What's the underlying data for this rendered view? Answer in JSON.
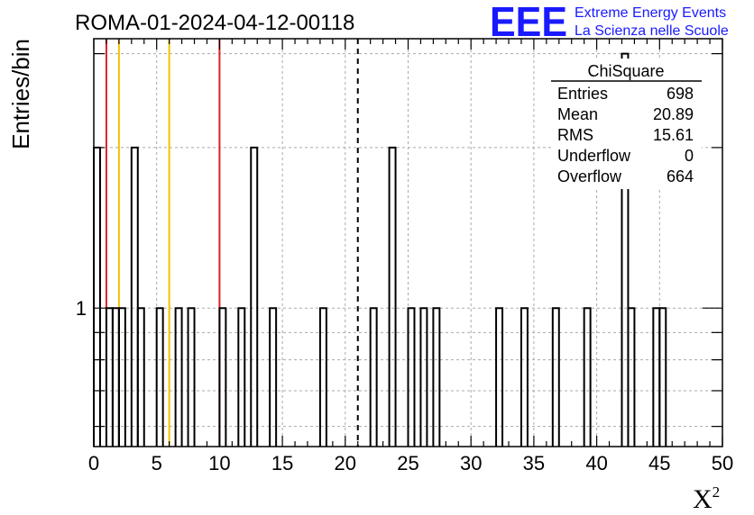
{
  "chart_data": {
    "type": "bar",
    "title": "ROMA-01-2024-04-12-00118",
    "xlabel": "X",
    "xlabel_superscript": "2",
    "ylabel": "Entries/bin",
    "xlim": [
      0,
      50
    ],
    "ylim": [
      0.55,
      3.2
    ],
    "y_scale": "log",
    "grid": true,
    "x_ticks": [
      "0",
      "5",
      "10",
      "15",
      "20",
      "25",
      "30",
      "35",
      "40",
      "45",
      "50"
    ],
    "y_ticks": [
      "1"
    ],
    "bin_width": 0.5,
    "bins": [
      {
        "x": 0.0,
        "y": 2
      },
      {
        "x": 1.0,
        "y": 1
      },
      {
        "x": 1.5,
        "y": 1
      },
      {
        "x": 2.0,
        "y": 1
      },
      {
        "x": 3.0,
        "y": 2
      },
      {
        "x": 3.5,
        "y": 1
      },
      {
        "x": 5.0,
        "y": 1
      },
      {
        "x": 6.5,
        "y": 1
      },
      {
        "x": 7.5,
        "y": 1
      },
      {
        "x": 10.0,
        "y": 1
      },
      {
        "x": 11.5,
        "y": 1
      },
      {
        "x": 12.5,
        "y": 2
      },
      {
        "x": 14.0,
        "y": 1
      },
      {
        "x": 18.0,
        "y": 1
      },
      {
        "x": 22.0,
        "y": 1
      },
      {
        "x": 23.5,
        "y": 2
      },
      {
        "x": 25.0,
        "y": 1
      },
      {
        "x": 26.0,
        "y": 1
      },
      {
        "x": 27.0,
        "y": 1
      },
      {
        "x": 32.0,
        "y": 1
      },
      {
        "x": 34.0,
        "y": 1
      },
      {
        "x": 36.5,
        "y": 1
      },
      {
        "x": 39.0,
        "y": 1
      },
      {
        "x": 42.0,
        "y": 3
      },
      {
        "x": 42.5,
        "y": 1
      },
      {
        "x": 44.5,
        "y": 1
      },
      {
        "x": 45.0,
        "y": 1
      }
    ],
    "vertical_lines": [
      {
        "x": 1,
        "color": "#dd2222",
        "style": "solid"
      },
      {
        "x": 10,
        "color": "#dd2222",
        "style": "solid"
      },
      {
        "x": 2,
        "color": "#f2c200",
        "style": "solid"
      },
      {
        "x": 6,
        "color": "#f2c200",
        "style": "solid"
      },
      {
        "x": 21,
        "color": "#000000",
        "style": "dashed"
      }
    ],
    "stats": {
      "title": "ChiSquare",
      "rows": [
        {
          "label": "Entries",
          "value": "698"
        },
        {
          "label": "Mean",
          "value": "20.89"
        },
        {
          "label": "RMS",
          "value": "15.61"
        },
        {
          "label": "Underflow",
          "value": "0"
        },
        {
          "label": "Overflow",
          "value": "664"
        }
      ]
    },
    "logo": {
      "mark": "EEE",
      "line1": "Extreme Energy Events",
      "line2": "La Scienza nelle Scuole",
      "color": "#1a1aff"
    }
  }
}
